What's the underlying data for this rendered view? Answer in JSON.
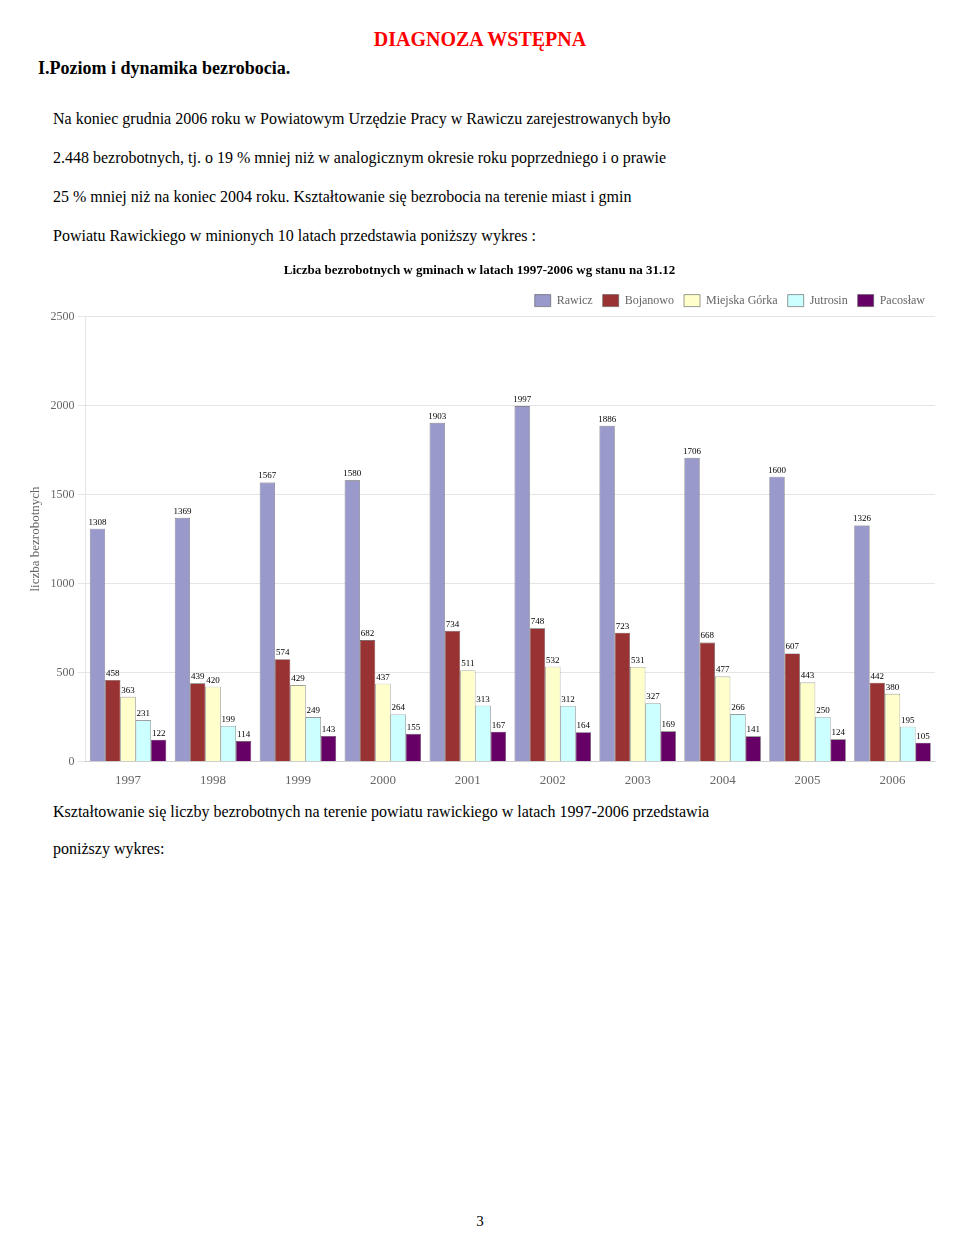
{
  "title": "DIAGNOZA WSTĘPNA",
  "subtitle": "I.Poziom i dynamika bezrobocia.",
  "annotations": [
    "Na koniec grudnia 2006 roku w Powiatowym Urzędzie Pracy w Rawiczu zarejestrowanych było",
    "2.448 bezrobotnych, tj. o 19 %  mniej niż w analogicznym okresie roku poprzedniego i o prawie",
    "25 % mniej niż na koniec 2004 roku.  Kształtowanie się bezrobocia na terenie miast i gmin",
    "Powiatu Rawickiego w minionych 10  latach przedstawia poniższy wykres :",
    "Kształtowanie się liczby bezrobotnych na terenie powiatu rawickiego w latach 1997-2006 przedstawia",
    "poniższy wykres:",
    "3"
  ],
  "chart_data": {
    "type": "bar",
    "title": "Liczba bezrobotnych w gminach w latach 1997-2006 wg stanu na 31.12",
    "ylabel": "liczba bezrobotnych",
    "categories": [
      "1997",
      "1998",
      "1999",
      "2000",
      "2001",
      "2002",
      "2003",
      "2004",
      "2005",
      "2006"
    ],
    "series": [
      {
        "name": "Rawicz",
        "color": "#9999cc",
        "values": [
          1308,
          1369,
          1567,
          1580,
          1903,
          1997,
          1886,
          1706,
          1600,
          1326
        ]
      },
      {
        "name": "Bojanowo",
        "color": "#993333",
        "values": [
          458,
          439,
          574,
          682,
          734,
          748,
          723,
          668,
          607,
          442
        ]
      },
      {
        "name": "Miejska Górka",
        "color": "#ffffcc",
        "values": [
          363,
          420,
          429,
          437,
          511,
          532,
          531,
          477,
          443,
          380
        ]
      },
      {
        "name": "Jutrosin",
        "color": "#ccffff",
        "values": [
          231,
          199,
          249,
          264,
          313,
          312,
          327,
          266,
          250,
          195
        ]
      },
      {
        "name": "Pacosław",
        "color": "#660066",
        "values": [
          122,
          114,
          143,
          155,
          167,
          164,
          169,
          141,
          124,
          105
        ]
      }
    ],
    "ylim": [
      0,
      2500
    ],
    "yticks": [
      0,
      500,
      1000,
      1500,
      2000,
      2500
    ],
    "grid": true,
    "legend": "upper right",
    "data_labels": true
  }
}
